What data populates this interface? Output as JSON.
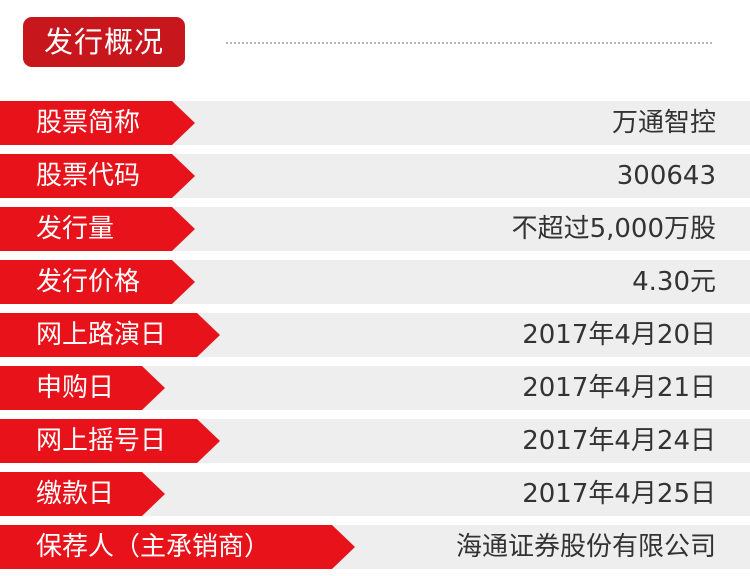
{
  "header": {
    "title": "发行概况"
  },
  "colors": {
    "accent_red": "#e8121b",
    "badge_red": "#c8161d",
    "row_bg": "#eeeeee",
    "text": "#333333"
  },
  "rows": [
    {
      "label": "股票简称",
      "value": "万通智控"
    },
    {
      "label": "股票代码",
      "value": "300643"
    },
    {
      "label": "发行量",
      "value": "不超过5,000万股"
    },
    {
      "label": "发行价格",
      "value": "4.30元"
    },
    {
      "label": "网上路演日",
      "value": "2017年4月20日"
    },
    {
      "label": "申购日",
      "value": "2017年4月21日"
    },
    {
      "label": "网上摇号日",
      "value": "2017年4月24日"
    },
    {
      "label": "缴款日",
      "value": "2017年4月25日"
    },
    {
      "label": "保荐人（主承销商）",
      "value": "海通证券股份有限公司"
    }
  ]
}
